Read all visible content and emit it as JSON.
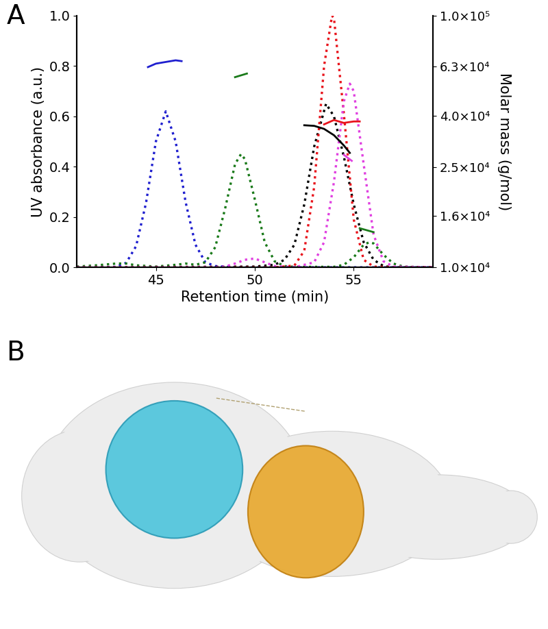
{
  "chart_data": {
    "type": "line",
    "panel_label": "A",
    "x_label": "Retention time (min)",
    "y_label": "UV absorbance (a.u.)",
    "y2_label": "Molar mass (g/mol)",
    "xlim": [
      41,
      59
    ],
    "xticks": [
      45,
      50,
      55
    ],
    "ylim": [
      0.0,
      1.0
    ],
    "yticks": [
      0.0,
      0.2,
      0.4,
      0.6,
      0.8,
      1.0
    ],
    "log": "y2",
    "y2lim": [
      10000,
      100000
    ],
    "y2ticks": [
      {
        "value": 10000,
        "label": "1.0×10⁴"
      },
      {
        "value": 16000,
        "label": "1.6×10⁴"
      },
      {
        "value": 25000,
        "label": "2.5×10⁴"
      },
      {
        "value": 40000,
        "label": "4.0×10⁴"
      },
      {
        "value": 63000,
        "label": "6.3×10⁴"
      },
      {
        "value": 100000,
        "label": "1.0×10⁵"
      }
    ],
    "grid": false,
    "series": [
      {
        "color": "#1f1fcf",
        "line_style": "dotted",
        "x": [
          41,
          43,
          43.5,
          44,
          44.5,
          45,
          45.5,
          46,
          46.5,
          47,
          47.5,
          48,
          49,
          59
        ],
        "values": [
          0.0,
          0.002,
          0.018,
          0.084,
          0.255,
          0.5,
          0.62,
          0.5,
          0.26,
          0.09,
          0.02,
          0.005,
          0.0,
          0.0
        ]
      },
      {
        "color": "#1a7a1a",
        "line_style": "dotted",
        "x": [
          41,
          42,
          43,
          43.5,
          44,
          45,
          46,
          46.5,
          47,
          47.5,
          48,
          48.5,
          49,
          49.3,
          49.5,
          50,
          50.5,
          51,
          51.5,
          52,
          54,
          54.5,
          55,
          55.5,
          55.8,
          56,
          56.5,
          57,
          57.5,
          59
        ],
        "values": [
          0.003,
          0.008,
          0.015,
          0.015,
          0.008,
          0.003,
          0.01,
          0.015,
          0.01,
          0.02,
          0.08,
          0.234,
          0.41,
          0.45,
          0.43,
          0.27,
          0.1,
          0.024,
          0.005,
          0.002,
          0.002,
          0.01,
          0.04,
          0.09,
          0.1,
          0.095,
          0.05,
          0.015,
          0.003,
          0.0
        ]
      },
      {
        "color": "#000000",
        "line_style": "dotted",
        "x": [
          41,
          50,
          51,
          51.5,
          52,
          52.5,
          53,
          53.6,
          54,
          54.5,
          55,
          55.5,
          56,
          56.5,
          57,
          59
        ],
        "values": [
          0.0,
          0.003,
          0.01,
          0.03,
          0.09,
          0.25,
          0.48,
          0.65,
          0.6,
          0.44,
          0.25,
          0.1,
          0.03,
          0.005,
          0.0,
          0.0
        ]
      },
      {
        "color": "#e8141c",
        "line_style": "dotted",
        "x": [
          41,
          51,
          52,
          52.5,
          53,
          53.5,
          53.9,
          54,
          54.5,
          55,
          55.5,
          56,
          57,
          59
        ],
        "values": [
          0.0,
          0.0,
          0.007,
          0.066,
          0.32,
          0.8,
          1.0,
          0.99,
          0.61,
          0.19,
          0.03,
          0.003,
          0.0,
          0.0
        ]
      },
      {
        "color": "#e040e0",
        "line_style": "dotted",
        "x": [
          41,
          48,
          48.5,
          49,
          49.5,
          50,
          50.5,
          51,
          52,
          53,
          53.5,
          54,
          54.5,
          54.8,
          55,
          55.5,
          56,
          56.5,
          57,
          59
        ],
        "values": [
          0.0,
          0.0,
          0.003,
          0.015,
          0.03,
          0.035,
          0.02,
          0.005,
          0.0,
          0.02,
          0.1,
          0.34,
          0.66,
          0.73,
          0.7,
          0.41,
          0.13,
          0.024,
          0.003,
          0.0
        ]
      },
      {
        "color": "#1f1fcf",
        "line_style": "solid",
        "axis": "y2",
        "x": [
          44.6,
          45,
          45.5,
          46,
          46.3
        ],
        "values": [
          62500,
          64500,
          65500,
          66500,
          66000
        ]
      },
      {
        "color": "#1a7a1a",
        "line_style": "solid",
        "axis": "y2",
        "x": [
          49.0,
          49.6
        ],
        "values": [
          57000,
          58900
        ]
      },
      {
        "color": "#000000",
        "line_style": "solid",
        "axis": "y2",
        "x": [
          52.5,
          53,
          53.5,
          54,
          54.5,
          54.8
        ],
        "values": [
          36700,
          36500,
          35500,
          33500,
          30500,
          28500
        ]
      },
      {
        "color": "#e8141c",
        "line_style": "solid",
        "axis": "y2",
        "x": [
          53.5,
          54,
          54.5,
          55,
          55.3
        ],
        "values": [
          37000,
          38500,
          37500,
          38000,
          38000
        ]
      },
      {
        "color": "#e040e0",
        "line_style": "solid",
        "axis": "y2",
        "x": [
          54.5,
          54.9
        ],
        "values": [
          28000,
          26500
        ]
      },
      {
        "color": "#1a7a1a",
        "line_style": "solid",
        "axis": "y2",
        "x": [
          55.3,
          56.0
        ],
        "values": [
          14300,
          13800
        ]
      }
    ]
  },
  "diagram": {
    "panel_label": "B"
  }
}
